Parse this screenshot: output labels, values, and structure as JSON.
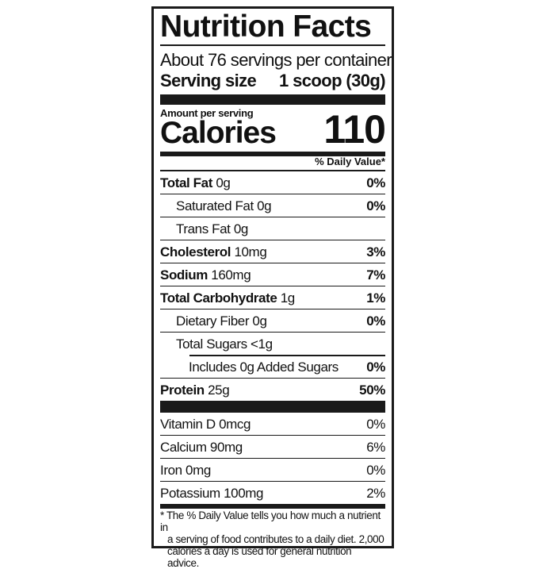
{
  "title": "Nutrition Facts",
  "servings_per_container": "About 76 servings per container",
  "serving_size_label": "Serving size",
  "serving_size_value": "1 scoop (30g)",
  "amount_per_serving": "Amount per serving",
  "calories_label": "Calories",
  "calories_value": "110",
  "daily_value_header": "% Daily Value*",
  "nutrients": [
    {
      "name": "Total Fat",
      "amount": "0g",
      "dv": "0%"
    },
    {
      "name": "Saturated Fat 0g",
      "amount": "",
      "dv": "0%"
    },
    {
      "name": "Trans Fat 0g",
      "amount": "",
      "dv": ""
    },
    {
      "name": "Cholesterol",
      "amount": "10mg",
      "dv": "3%"
    },
    {
      "name": "Sodium",
      "amount": "160mg",
      "dv": "7%"
    },
    {
      "name": "Total Carbohydrate",
      "amount": "1g",
      "dv": "1%"
    },
    {
      "name": "Dietary Fiber 0g",
      "amount": "",
      "dv": "0%"
    },
    {
      "name": "Total Sugars <1g",
      "amount": "",
      "dv": ""
    },
    {
      "name": "Includes 0g Added Sugars",
      "amount": "",
      "dv": "0%"
    },
    {
      "name": "Protein",
      "amount": "25g",
      "dv": "50%"
    }
  ],
  "vitamins": [
    {
      "name": "Vitamin D 0mcg",
      "dv": "0%"
    },
    {
      "name": "Calcium 90mg",
      "dv": "6%"
    },
    {
      "name": "Iron 0mg",
      "dv": "0%"
    },
    {
      "name": "Potassium 100mg",
      "dv": "2%"
    }
  ],
  "footnote": [
    "* The % Daily Value tells you how much a nutrient in",
    "a serving of food contributes to a daily diet. 2,000",
    "calories a day is used for general nutrition advice."
  ]
}
